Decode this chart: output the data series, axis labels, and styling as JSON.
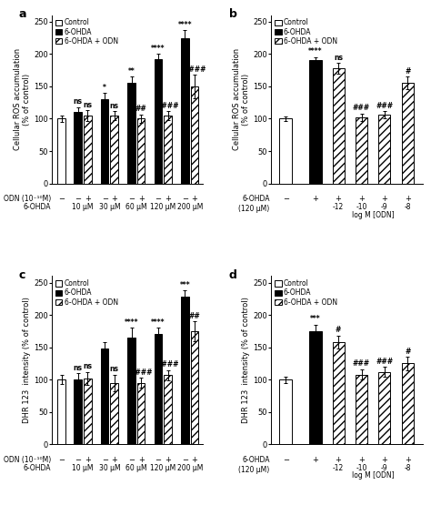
{
  "panel_a": {
    "title": "a",
    "ylabel": "Cellular ROS accumulation\n(% of control)",
    "groups": [
      "Control",
      "10 μM",
      "30 μM",
      "60 μM",
      "120 μM",
      "200 μM"
    ],
    "ohda_vals": [
      null,
      110,
      130,
      155,
      192,
      225
    ],
    "ohda_errs": [
      null,
      8,
      10,
      10,
      8,
      12
    ],
    "odn_vals": [
      null,
      105,
      105,
      100,
      105,
      150
    ],
    "odn_errs": [
      null,
      8,
      7,
      7,
      7,
      18
    ],
    "ctrl_val": 100,
    "ctrl_err": 5,
    "ohda_sig": [
      "",
      "ns",
      "*",
      "**",
      "****",
      "****"
    ],
    "odn_sig": [
      "",
      "ns",
      "ns",
      "##",
      "####",
      "####"
    ],
    "ylim": [
      0,
      260
    ],
    "yticks": [
      0,
      50,
      100,
      150,
      200,
      250
    ],
    "xlabel_top": "ODN (10⁻¹⁰M)",
    "xlabel_bot": "6-OHDA"
  },
  "panel_b": {
    "title": "b",
    "ylabel": "Cellular ROS accumulation\n(% of control)",
    "ohda_val": 190,
    "ohda_err": 5,
    "ctrl_val": 100,
    "ctrl_err": 4,
    "odn_vals": [
      178,
      102,
      106,
      155
    ],
    "odn_errs": [
      8,
      6,
      6,
      10
    ],
    "ohda_sig": "****",
    "odn_sigs": [
      "ns",
      "###",
      "###",
      "#"
    ],
    "ylim": [
      0,
      260
    ],
    "yticks": [
      0,
      50,
      100,
      150,
      200,
      250
    ],
    "xticklabels": [
      "-12",
      "-10",
      "-9",
      "-8"
    ],
    "xlabel_bot": "log M [ODN]",
    "xlabel_top": "6-OHDA\n(120 μM)"
  },
  "panel_c": {
    "title": "c",
    "ylabel": "DHR 123  intensity (% of control)",
    "groups": [
      "Control",
      "10 μM",
      "30 μM",
      "60 μM",
      "120 μM",
      "200 μM"
    ],
    "ohda_vals": [
      null,
      100,
      148,
      165,
      170,
      228
    ],
    "ohda_errs": [
      null,
      10,
      10,
      15,
      10,
      10
    ],
    "odn_vals": [
      null,
      102,
      95,
      95,
      107,
      175
    ],
    "odn_errs": [
      null,
      10,
      13,
      8,
      8,
      15
    ],
    "ctrl_val": 100,
    "ctrl_err": 7,
    "ohda_sig": [
      "",
      "ns",
      "",
      "****",
      "****",
      "***"
    ],
    "odn_sig": [
      "",
      "ns",
      "ns",
      "####",
      "####",
      "##"
    ],
    "ylim": [
      0,
      260
    ],
    "yticks": [
      0,
      50,
      100,
      150,
      200,
      250
    ],
    "xlabel_top": "ODN (10⁻¹⁰M)",
    "xlabel_bot": "6-OHDA"
  },
  "panel_d": {
    "title": "d",
    "ylabel": "DHR 123  intensity (% of control)",
    "ohda_val": 175,
    "ohda_err": 10,
    "ctrl_val": 100,
    "ctrl_err": 5,
    "odn_vals": [
      158,
      108,
      112,
      125
    ],
    "odn_errs": [
      10,
      8,
      8,
      10
    ],
    "ohda_sig": "***",
    "odn_sigs": [
      "#",
      "###",
      "###",
      "#"
    ],
    "ylim": [
      0,
      260
    ],
    "yticks": [
      0,
      50,
      100,
      150,
      200,
      250
    ],
    "xticklabels": [
      "-12",
      "-10",
      "-9",
      "-8"
    ],
    "xlabel_bot": "log M [ODN]",
    "xlabel_top": "6-OHDA\n(120 μM)"
  },
  "colors": {
    "control": "#ffffff",
    "ohda": "#000000",
    "odn": "#ffffff",
    "edge": "#000000"
  },
  "fontsize": 6.0,
  "sig_fontsize": 5.5,
  "hatch": "////"
}
